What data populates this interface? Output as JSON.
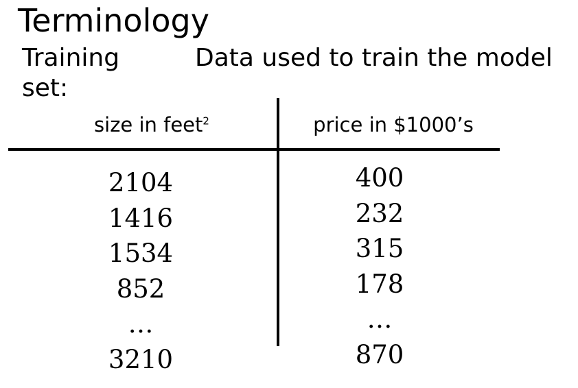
{
  "slide": {
    "title": "Terminology",
    "term": {
      "label": "Training set:",
      "definition": "Data used to train the model"
    }
  },
  "table": {
    "columns": [
      {
        "label": "size in feet",
        "superscript": "2"
      },
      {
        "label": "price in $1000’s"
      }
    ],
    "rows": [
      [
        "2104",
        "400"
      ],
      [
        "1416",
        "232"
      ],
      [
        "1534",
        "315"
      ],
      [
        "852",
        "178"
      ],
      [
        "…",
        "…"
      ],
      [
        "3210",
        "870"
      ]
    ]
  }
}
